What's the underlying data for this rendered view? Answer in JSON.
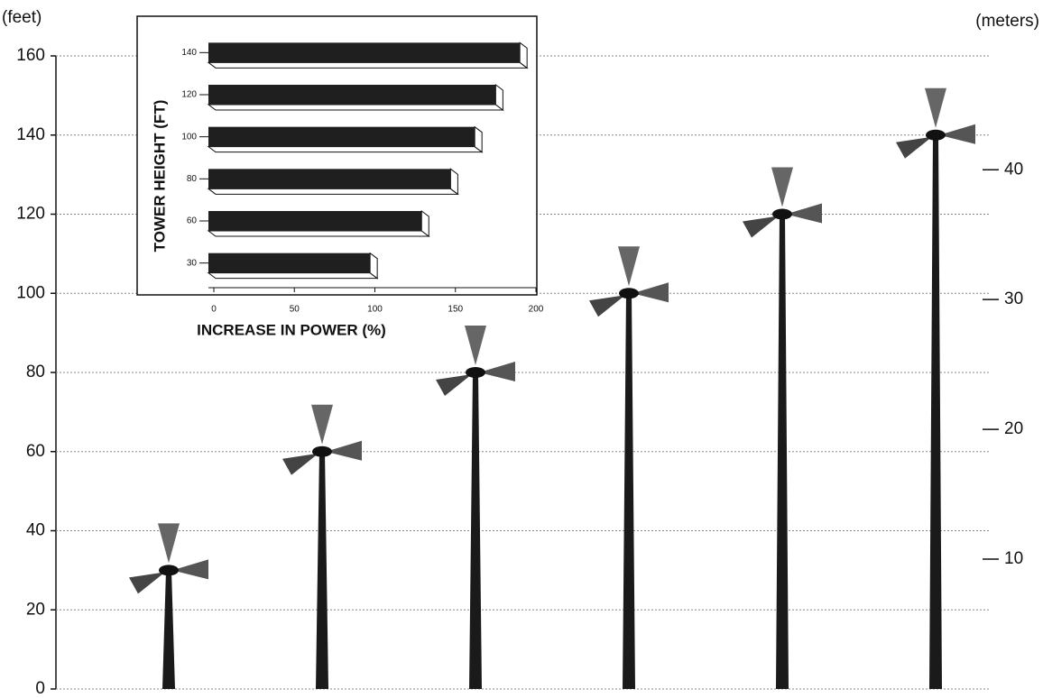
{
  "chart_data": [
    {
      "type": "turbine",
      "y_label": "(feet)",
      "y2_label": "(meters)",
      "values": [
        30,
        60,
        80,
        100,
        120,
        140
      ],
      "color": "#1a1a1a",
      "ylim": [
        0,
        160
      ],
      "yticks": [
        0,
        20,
        40,
        60,
        80,
        100,
        120,
        140,
        160
      ],
      "y2lim": [
        0,
        48.77
      ],
      "y2ticks": [
        10,
        20,
        30,
        40
      ],
      "grid": true
    },
    {
      "type": "hbar",
      "y_label": "TOWER HEIGHT (FT)",
      "x_label": "INCREASE IN POWER (%)",
      "categories": [
        "140",
        "120",
        "100",
        "80",
        "60",
        "30"
      ],
      "values": [
        190,
        175,
        162,
        147,
        129,
        97
      ],
      "color": "#1f1f1f",
      "xlim": [
        0,
        200
      ],
      "xticks": [
        0,
        50,
        100,
        150,
        200
      ]
    }
  ]
}
